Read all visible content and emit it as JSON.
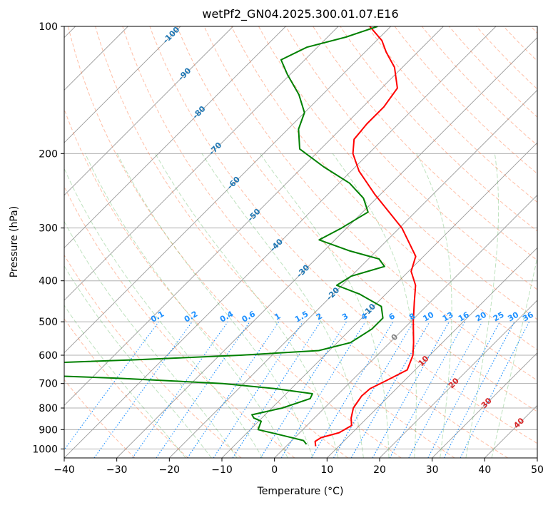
{
  "chart_data": {
    "type": "skew-t",
    "title": "wetPf2_GN04.2025.300.01.07.E16",
    "xlabel": "Temperature (°C)",
    "ylabel": "Pressure (hPa)",
    "xlim": [
      -40,
      50
    ],
    "ylim": [
      1050,
      100
    ],
    "y_scale": "log",
    "skew_degrees": 45,
    "x_ticks": [
      "−40",
      "−30",
      "−20",
      "−10",
      "0",
      "10",
      "20",
      "30",
      "40",
      "50"
    ],
    "y_ticks": [
      "100",
      "200",
      "300",
      "400",
      "500",
      "600",
      "700",
      "800",
      "900",
      "1000"
    ],
    "grid": true,
    "series": [
      {
        "role": "temperature",
        "color": "#ff0000",
        "points": [
          {
            "p": 985,
            "t": 5.6
          },
          {
            "p": 960,
            "t": 4.6
          },
          {
            "p": 940,
            "t": 5.0
          },
          {
            "p": 915,
            "t": 7.5
          },
          {
            "p": 880,
            "t": 8.5
          },
          {
            "p": 845,
            "t": 7.0
          },
          {
            "p": 800,
            "t": 5.5
          },
          {
            "p": 750,
            "t": 4.8
          },
          {
            "p": 720,
            "t": 5.0
          },
          {
            "p": 690,
            "t": 6.5
          },
          {
            "p": 650,
            "t": 8.5
          },
          {
            "p": 600,
            "t": 6.8
          },
          {
            "p": 560,
            "t": 4.5
          },
          {
            "p": 500,
            "t": 0.5
          },
          {
            "p": 450,
            "t": -3.0
          },
          {
            "p": 410,
            "t": -6.0
          },
          {
            "p": 380,
            "t": -9.5
          },
          {
            "p": 350,
            "t": -11.5
          },
          {
            "p": 300,
            "t": -19.5
          },
          {
            "p": 250,
            "t": -31.0
          },
          {
            "p": 220,
            "t": -38.5
          },
          {
            "p": 200,
            "t": -43.0
          },
          {
            "p": 185,
            "t": -45.5
          },
          {
            "p": 170,
            "t": -46.0
          },
          {
            "p": 155,
            "t": -46.0
          },
          {
            "p": 140,
            "t": -47.0
          },
          {
            "p": 125,
            "t": -51.5
          },
          {
            "p": 115,
            "t": -56.0
          },
          {
            "p": 108,
            "t": -59.0
          },
          {
            "p": 100,
            "t": -64.0
          }
        ]
      },
      {
        "role": "dewpoint",
        "color": "#008000",
        "points": [
          {
            "p": 975,
            "t": 3.5
          },
          {
            "p": 955,
            "t": 2.2
          },
          {
            "p": 930,
            "t": -2.5
          },
          {
            "p": 900,
            "t": -8.5
          },
          {
            "p": 860,
            "t": -9.5
          },
          {
            "p": 845,
            "t": -11.5
          },
          {
            "p": 830,
            "t": -12.5
          },
          {
            "p": 800,
            "t": -8.0
          },
          {
            "p": 760,
            "t": -4.5
          },
          {
            "p": 740,
            "t": -5.0
          },
          {
            "p": 720,
            "t": -13.0
          },
          {
            "p": 700,
            "t": -24.0
          },
          {
            "p": 680,
            "t": -45.0
          },
          {
            "p": 670,
            "t": -60.0
          },
          {
            "p": 625,
            "t": -60.0
          },
          {
            "p": 615,
            "t": -45.0
          },
          {
            "p": 600,
            "t": -26.0
          },
          {
            "p": 585,
            "t": -12.0
          },
          {
            "p": 560,
            "t": -7.5
          },
          {
            "p": 520,
            "t": -6.0
          },
          {
            "p": 490,
            "t": -6.0
          },
          {
            "p": 460,
            "t": -8.5
          },
          {
            "p": 430,
            "t": -15.0
          },
          {
            "p": 410,
            "t": -21.0
          },
          {
            "p": 390,
            "t": -20.0
          },
          {
            "p": 370,
            "t": -15.5
          },
          {
            "p": 355,
            "t": -18.0
          },
          {
            "p": 340,
            "t": -25.0
          },
          {
            "p": 320,
            "t": -33.0
          },
          {
            "p": 300,
            "t": -31.0
          },
          {
            "p": 275,
            "t": -29.0
          },
          {
            "p": 255,
            "t": -32.5
          },
          {
            "p": 235,
            "t": -38.0
          },
          {
            "p": 215,
            "t": -46.0
          },
          {
            "p": 195,
            "t": -54.0
          },
          {
            "p": 175,
            "t": -58.0
          },
          {
            "p": 160,
            "t": -60.0
          },
          {
            "p": 145,
            "t": -64.5
          },
          {
            "p": 130,
            "t": -70.5
          },
          {
            "p": 120,
            "t": -74.5
          },
          {
            "p": 112,
            "t": -72.0
          },
          {
            "p": 106,
            "t": -66.5
          },
          {
            "p": 100,
            "t": -62.5
          }
        ]
      }
    ],
    "isotherms": {
      "values": [
        -100,
        -90,
        -80,
        -70,
        -60,
        -50,
        -40,
        -30,
        -20,
        -10,
        0
      ],
      "labels": [
        "-100",
        "-90",
        "-80",
        "-70",
        "-60",
        "-50",
        "-40",
        "-30",
        "-20",
        "-10",
        "0"
      ],
      "label_pressures": [
        105,
        130,
        160,
        195,
        235,
        280,
        330,
        380,
        430,
        470,
        545
      ],
      "label_colors": [
        "#1f77b4",
        "#1f77b4",
        "#1f77b4",
        "#1f77b4",
        "#1f77b4",
        "#1f77b4",
        "#1f77b4",
        "#1f77b4",
        "#1f77b4",
        "#1f77b4",
        "#808080"
      ]
    },
    "mixing_ratio_labels": {
      "values": [
        "0.1",
        "0.2",
        "0.4",
        "0.6",
        "1",
        "1.5",
        "2",
        "3",
        "4",
        "6",
        "8",
        "10",
        "13",
        "16",
        "20",
        "25",
        "30",
        "36"
      ],
      "label_pressure": 500,
      "color": "#1e90ff"
    },
    "warm_isotherm_labels": {
      "values": [
        "10",
        "20",
        "30",
        "40"
      ],
      "temps": [
        10,
        20,
        30,
        40
      ],
      "pressures": [
        620,
        700,
        780,
        870
      ],
      "color": "#d62728"
    },
    "colors": {
      "isotherm_lines": "#9a9a9a",
      "dry_adiabats": "#ff7f50",
      "moist_adiabats": "#2ca02c",
      "mixing_ratio_lines": "#1e90ff",
      "lcl_reference": "#d2b48c"
    }
  }
}
